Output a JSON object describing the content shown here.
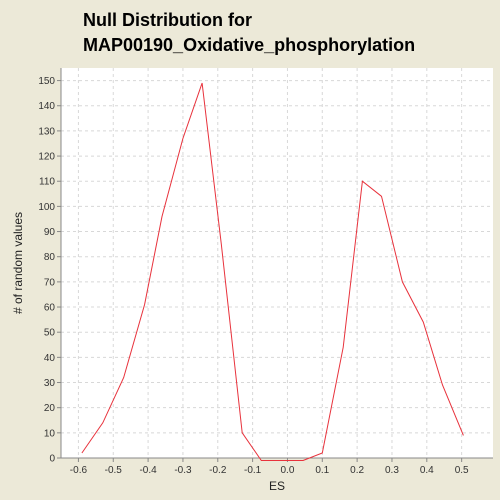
{
  "colors": {
    "background": "#ece9d8",
    "plot_background": "#ffffff",
    "series_line": "#e8323c",
    "grid": "#d8d8d8",
    "axis": "#888888"
  },
  "chart_data": {
    "type": "line",
    "title_lines": [
      "Null Distribution for",
      "MAP00190_Oxidative_phosphorylation"
    ],
    "xlabel": "ES",
    "ylabel": "# of random values",
    "xlim": [
      -0.65,
      0.59
    ],
    "ylim": [
      0,
      155
    ],
    "x_ticks": [
      -0.6,
      -0.5,
      -0.4,
      -0.3,
      -0.2,
      -0.1,
      0.0,
      0.1,
      0.2,
      0.3,
      0.4,
      0.5
    ],
    "x_tick_labels": [
      "-0.6",
      "-0.5",
      "-0.4",
      "-0.3",
      "-0.2",
      "-0.1",
      "0.0",
      "0.1",
      "0.2",
      "0.3",
      "0.4",
      "0.5"
    ],
    "y_ticks": [
      0,
      10,
      20,
      30,
      40,
      50,
      60,
      70,
      80,
      90,
      100,
      110,
      120,
      130,
      140,
      150
    ],
    "y_tick_labels": [
      "0",
      "10",
      "20",
      "30",
      "40",
      "50",
      "60",
      "70",
      "80",
      "90",
      "100",
      "110",
      "120",
      "130",
      "140",
      "150"
    ],
    "grid": true,
    "series": [
      {
        "x": [
          -0.59,
          -0.53,
          -0.47,
          -0.41,
          -0.36,
          -0.3,
          -0.245,
          -0.19,
          -0.13,
          -0.075,
          -0.02,
          0.045,
          0.1,
          0.16,
          0.215,
          0.27,
          0.33,
          0.39,
          0.445,
          0.505
        ],
        "y": [
          2,
          14,
          32,
          61,
          96,
          127,
          149,
          85,
          10,
          -1,
          -1,
          -1,
          2,
          44,
          110,
          104,
          70,
          54,
          29,
          9
        ]
      }
    ]
  }
}
